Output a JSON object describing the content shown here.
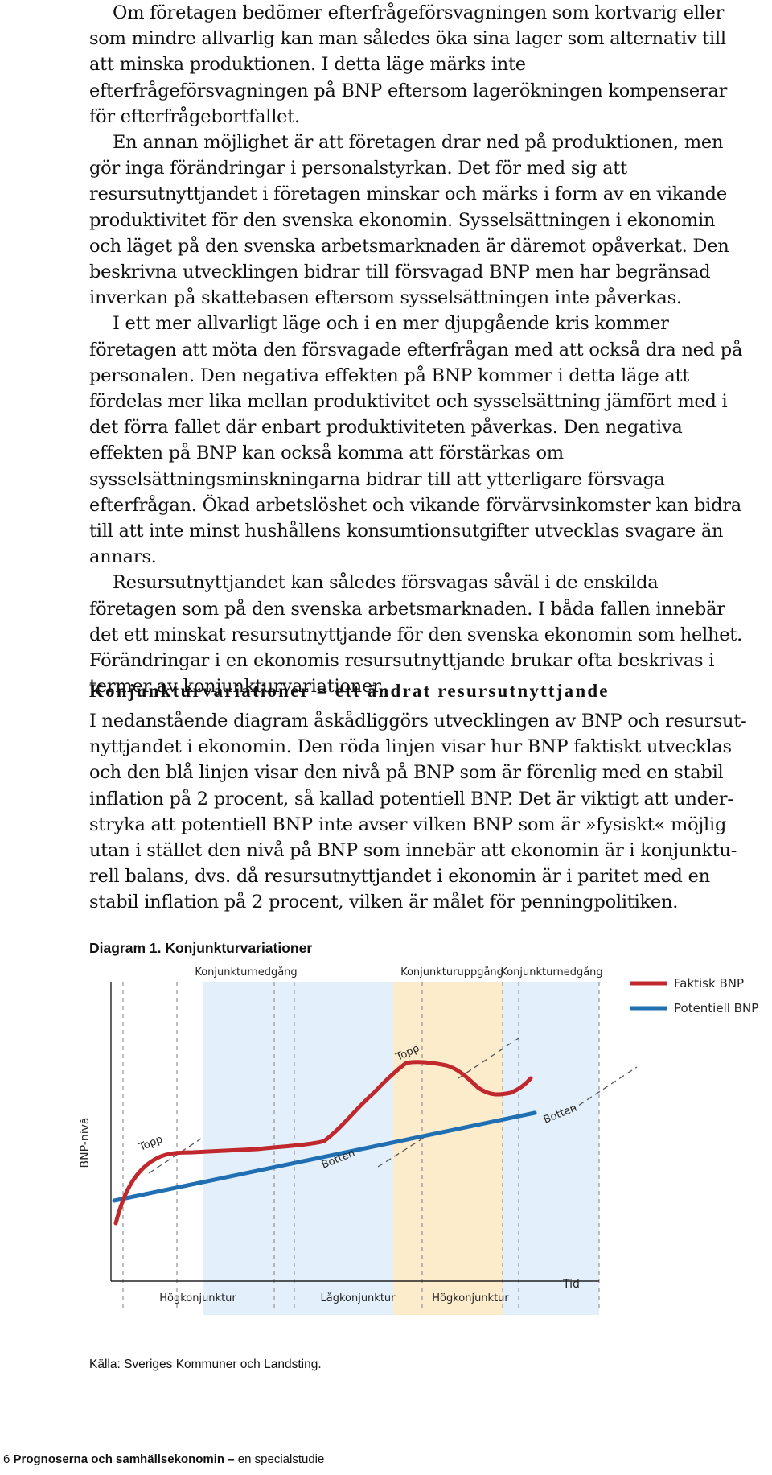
{
  "paragraphs_top": [
    "Om företagen bedömer efterfrågeförsvagningen som kortvarig eller som mindre allvarlig kan man således öka sina lager som alternativ till att minska produktionen. I detta läge märks inte efterfrågeförsvagningen på BNP eftersom lagerökningen kompenserar för efterfrågebortfallet.",
    "En annan möjlighet är att företagen drar ned på produktionen, men gör inga förändringar i personalstyrkan. Det för med sig att resursutnytt­jandet i företagen minskar och märks i form av en vikande produktivitet för den svenska ekonomin. Sysselsättningen i ekonomin och läget på den svenska arbetsmarknaden är däremot opåverkat. Den beskrivna utveckl­ingen bidrar till försvagad BNP men har begränsad inverkan på skatteba­sen eftersom sysselsättningen inte påverkas.",
    "I ett mer allvarligt läge och i en mer djupgående kris kommer företagen att möta den försvagade efterfrågan med att också dra ned på personalen. Den negativa effekten på BNP kommer i detta läge att fördelas mer lika mellan produktivitet och sysselsättning jämfört med i det förra fallet där enbart produktiviteten påverkas. Den negativa effekten på BNP kan också komma att förstärkas om sysselsättningsminskningarna bidrar till att ytterligare försvaga efterfrågan. Ökad arbetslöshet och vikande förvärv­sinkomster kan bidra till att inte minst hushållens konsumtionsutgifter utvecklas svagare än annars.",
    "Resursutnyttjandet kan således försvagas såväl i de enskilda företagen som på den svenska arbetsmarknaden. I båda fallen innebär det ett mins­kat resursutnyttjande för den svenska ekonomin som helhet. Förändring­ar i en ekonomis resursutnyttjande brukar ofta beskrivas i termer av kon­junkturvariationer."
  ],
  "section_heading": "Konjunkturvariationer = ett ändrat resursutnyttjande",
  "section_paragraph": "I nedanstående diagram åskådliggörs utvecklingen av BNP och resursut­nyttjandet i ekonomin. Den röda linjen visar hur BNP faktiskt utvecklas och den blå linjen visar den nivå på BNP som är förenlig med en stabil inflation på 2 procent, så kallad potentiell BNP. Det är viktigt att under­stryka att potentiell BNP inte avser vilken BNP som är »fysiskt« möjlig utan i stället den nivå på BNP som innebär att ekonomin är i konjunktu­rell balans, dvs. då resursutnyttjandet i ekonomin är i paritet med en stabil inflation på 2 procent, vilken är målet för penningpolitiken.",
  "diagram_caption": "Diagram 1. Konjunkturvariationer",
  "source": "Källa: Sveriges Kommuner och Landsting.",
  "footer": {
    "page_number": "6",
    "title": "Prognoserna och samhällsekonomin",
    "dash": "–",
    "subtitle": "en specialstudie"
  },
  "chart_data": {
    "type": "line",
    "title": "",
    "ylabel": "BNP-nivå",
    "xlabel": "Tid",
    "legend_position": "top-right",
    "series": [
      {
        "name": "Faktisk BNP",
        "color": "#c0282d"
      },
      {
        "name": "Potentiell BNP",
        "color": "#1f6fb2"
      }
    ],
    "phases_top": [
      "Konjunkturnedgång",
      "Konjunkturuppgång",
      "Konjunkturnedgång"
    ],
    "phases_bottom": [
      "Högkonjunktur",
      "Lågkonjunktur",
      "Högkonjunktur"
    ],
    "annotations": [
      "Topp",
      "Botten",
      "Topp",
      "Botten"
    ],
    "colors": {
      "downturn": "#e3effa",
      "upturn": "#fdeccc"
    }
  }
}
